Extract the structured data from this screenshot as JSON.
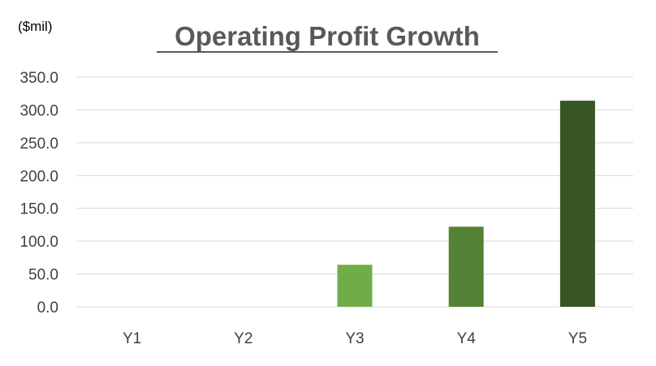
{
  "chart_data": {
    "type": "bar",
    "title": "Operating Profit Growth",
    "unit_label": "($mil)",
    "xlabel": "",
    "ylabel": "",
    "categories": [
      "Y1",
      "Y2",
      "Y3",
      "Y4",
      "Y5"
    ],
    "values": [
      0,
      0,
      64,
      122,
      314
    ],
    "ylim": [
      0,
      350
    ],
    "yticks": [
      "0.0",
      "50.0",
      "100.0",
      "150.0",
      "200.0",
      "250.0",
      "300.0",
      "350.0"
    ],
    "grid": true,
    "legend": "none",
    "colors": [
      "#70ad47",
      "#70ad47",
      "#70ad47",
      "#548235",
      "#375623"
    ]
  }
}
